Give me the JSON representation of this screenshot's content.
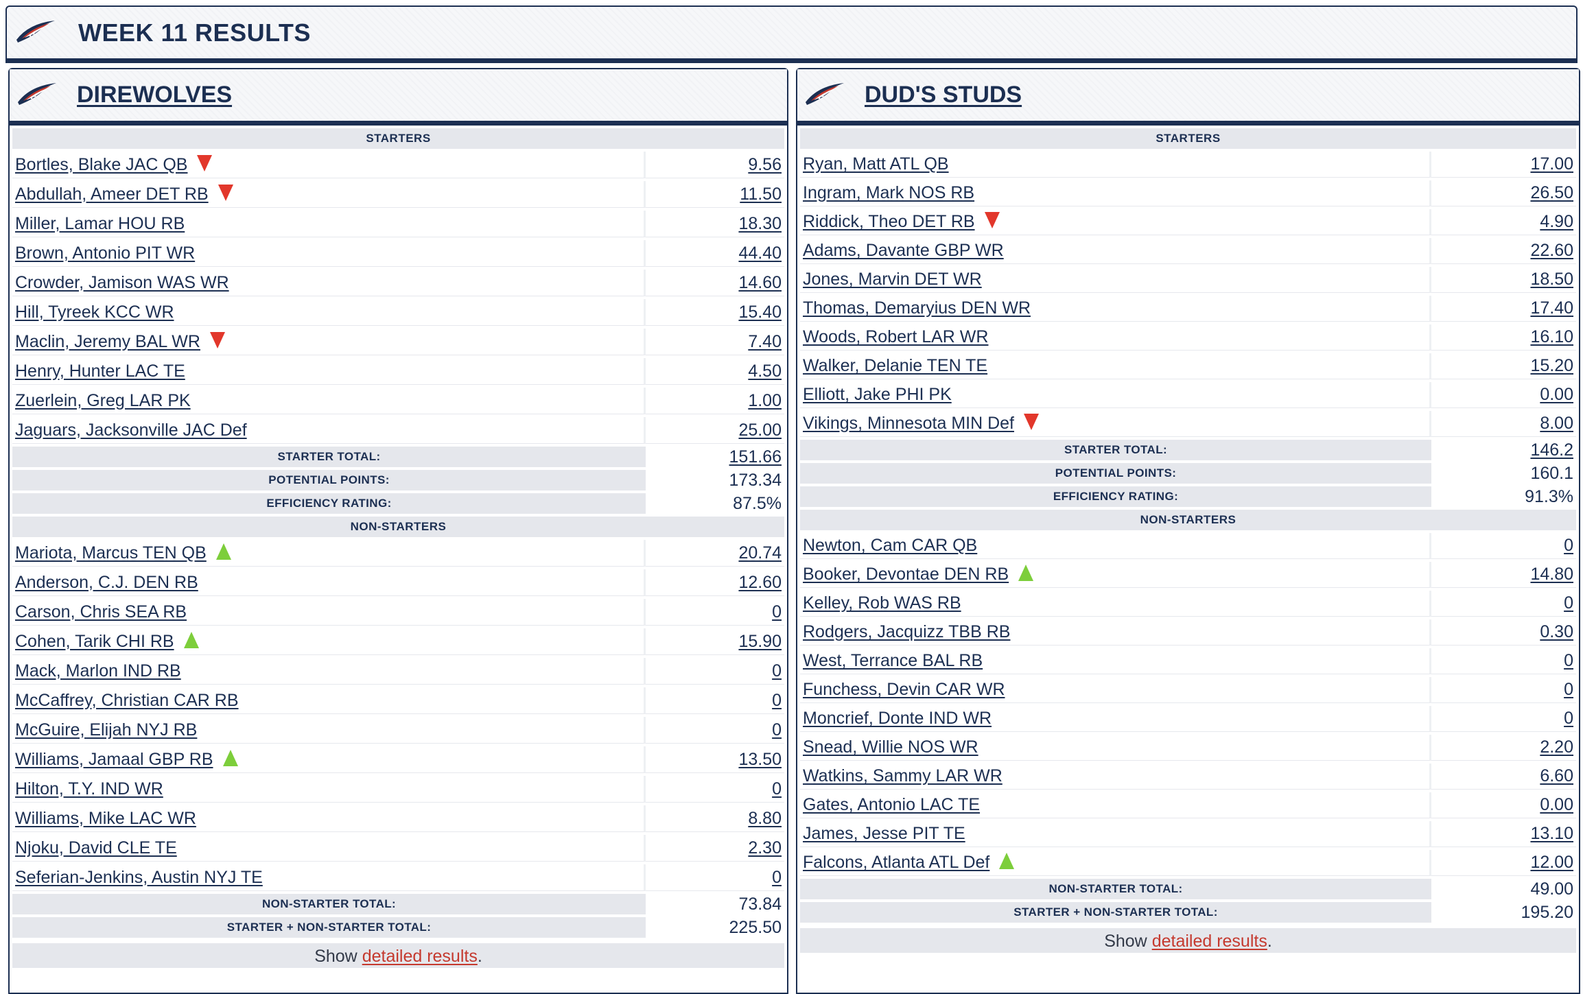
{
  "header": {
    "title": "WEEK 11 RESULTS"
  },
  "colors": {
    "navy": "#1c2f52",
    "down_arrow": "#e2372b",
    "up_arrow": "#7dce3b",
    "link_red": "#c5392e"
  },
  "teams": [
    {
      "name": "DIREWOLVES",
      "starters_label": "STARTERS",
      "starters": [
        {
          "name": "Bortles, Blake JAC QB",
          "points": "9.56",
          "trend": "down"
        },
        {
          "name": "Abdullah, Ameer DET RB",
          "points": "11.50",
          "trend": "down"
        },
        {
          "name": "Miller, Lamar HOU RB",
          "points": "18.30",
          "trend": ""
        },
        {
          "name": "Brown, Antonio PIT WR",
          "points": "44.40",
          "trend": ""
        },
        {
          "name": "Crowder, Jamison WAS WR",
          "points": "14.60",
          "trend": ""
        },
        {
          "name": "Hill, Tyreek KCC WR",
          "points": "15.40",
          "trend": ""
        },
        {
          "name": "Maclin, Jeremy BAL WR",
          "points": "7.40",
          "trend": "down"
        },
        {
          "name": "Henry, Hunter LAC TE",
          "points": "4.50",
          "trend": ""
        },
        {
          "name": "Zuerlein, Greg LAR PK",
          "points": "1.00",
          "trend": ""
        },
        {
          "name": "Jaguars, Jacksonville JAC Def",
          "points": "25.00",
          "trend": ""
        }
      ],
      "starter_totals": [
        {
          "label": "STARTER TOTAL:",
          "value": "151.66",
          "link": true
        },
        {
          "label": "POTENTIAL POINTS:",
          "value": "173.34",
          "link": false
        },
        {
          "label": "EFFICIENCY RATING:",
          "value": "87.5%",
          "link": false
        }
      ],
      "nonstarters_label": "NON-STARTERS",
      "nonstarters": [
        {
          "name": "Mariota, Marcus TEN QB",
          "points": "20.74",
          "trend": "up"
        },
        {
          "name": "Anderson, C.J. DEN RB",
          "points": "12.60",
          "trend": ""
        },
        {
          "name": "Carson, Chris SEA RB",
          "points": "0",
          "trend": ""
        },
        {
          "name": "Cohen, Tarik CHI RB",
          "points": "15.90",
          "trend": "up"
        },
        {
          "name": "Mack, Marlon IND RB",
          "points": "0",
          "trend": ""
        },
        {
          "name": "McCaffrey, Christian CAR RB",
          "points": "0",
          "trend": ""
        },
        {
          "name": "McGuire, Elijah NYJ RB",
          "points": "0",
          "trend": ""
        },
        {
          "name": "Williams, Jamaal GBP RB",
          "points": "13.50",
          "trend": "up"
        },
        {
          "name": "Hilton, T.Y. IND WR",
          "points": "0",
          "trend": ""
        },
        {
          "name": "Williams, Mike LAC WR",
          "points": "8.80",
          "trend": ""
        },
        {
          "name": "Njoku, David CLE TE",
          "points": "2.30",
          "trend": ""
        },
        {
          "name": "Seferian-Jenkins, Austin NYJ TE",
          "points": "0",
          "trend": ""
        }
      ],
      "nonstarter_totals": [
        {
          "label": "NON-STARTER TOTAL:",
          "value": "73.84",
          "link": false
        },
        {
          "label": "STARTER + NON-STARTER TOTAL:",
          "value": "225.50",
          "link": false
        }
      ],
      "show_prefix": "Show ",
      "show_link": "detailed results",
      "show_suffix": "."
    },
    {
      "name": "DUD'S STUDS",
      "starters_label": "STARTERS",
      "starters": [
        {
          "name": "Ryan, Matt ATL QB",
          "points": "17.00",
          "trend": ""
        },
        {
          "name": "Ingram, Mark NOS RB",
          "points": "26.50",
          "trend": ""
        },
        {
          "name": "Riddick, Theo DET RB",
          "points": "4.90",
          "trend": "down"
        },
        {
          "name": "Adams, Davante GBP WR",
          "points": "22.60",
          "trend": ""
        },
        {
          "name": "Jones, Marvin DET WR",
          "points": "18.50",
          "trend": ""
        },
        {
          "name": "Thomas, Demaryius DEN WR",
          "points": "17.40",
          "trend": ""
        },
        {
          "name": "Woods, Robert LAR WR",
          "points": "16.10",
          "trend": ""
        },
        {
          "name": "Walker, Delanie TEN TE",
          "points": "15.20",
          "trend": ""
        },
        {
          "name": "Elliott, Jake PHI PK",
          "points": "0.00",
          "trend": ""
        },
        {
          "name": "Vikings, Minnesota MIN Def",
          "points": "8.00",
          "trend": "down"
        }
      ],
      "starter_totals": [
        {
          "label": "STARTER TOTAL:",
          "value": "146.2",
          "link": true
        },
        {
          "label": "POTENTIAL POINTS:",
          "value": "160.1",
          "link": false
        },
        {
          "label": "EFFICIENCY RATING:",
          "value": "91.3%",
          "link": false
        }
      ],
      "nonstarters_label": "NON-STARTERS",
      "nonstarters": [
        {
          "name": "Newton, Cam CAR QB",
          "points": "0",
          "trend": ""
        },
        {
          "name": "Booker, Devontae DEN RB",
          "points": "14.80",
          "trend": "up"
        },
        {
          "name": "Kelley, Rob WAS RB",
          "points": "0",
          "trend": ""
        },
        {
          "name": "Rodgers, Jacquizz TBB RB",
          "points": "0.30",
          "trend": ""
        },
        {
          "name": "West, Terrance BAL RB",
          "points": "0",
          "trend": ""
        },
        {
          "name": "Funchess, Devin CAR WR",
          "points": "0",
          "trend": ""
        },
        {
          "name": "Moncrief, Donte IND WR",
          "points": "0",
          "trend": ""
        },
        {
          "name": "Snead, Willie NOS WR",
          "points": "2.20",
          "trend": ""
        },
        {
          "name": "Watkins, Sammy LAR WR",
          "points": "6.60",
          "trend": ""
        },
        {
          "name": "Gates, Antonio LAC TE",
          "points": "0.00",
          "trend": ""
        },
        {
          "name": "James, Jesse PIT TE",
          "points": "13.10",
          "trend": ""
        },
        {
          "name": "Falcons, Atlanta ATL Def",
          "points": "12.00",
          "trend": "up"
        }
      ],
      "nonstarter_totals": [
        {
          "label": "NON-STARTER TOTAL:",
          "value": "49.00",
          "link": false
        },
        {
          "label": "STARTER + NON-STARTER TOTAL:",
          "value": "195.20",
          "link": false
        }
      ],
      "show_prefix": "Show ",
      "show_link": "detailed results",
      "show_suffix": "."
    }
  ]
}
